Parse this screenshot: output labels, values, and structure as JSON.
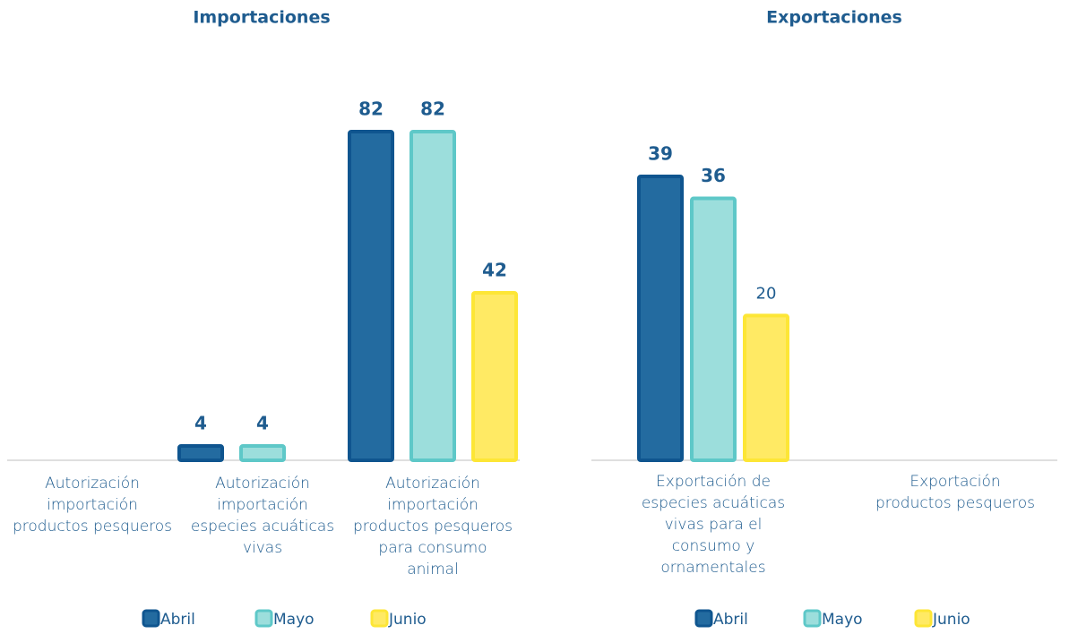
{
  "chart_data": [
    {
      "type": "bar",
      "title": "Importaciones",
      "categories": [
        "Autorización importación productos pesqueros",
        "Autorización importación especies acuáticas vivas",
        "Autorización importación productos pesqueros para consumo animal"
      ],
      "series": [
        {
          "name": "Abril",
          "color": "#236ba0",
          "values": [
            null,
            4,
            82
          ]
        },
        {
          "name": "Mayo",
          "color": "#9cdedc",
          "values": [
            null,
            4,
            82
          ]
        },
        {
          "name": "Junio",
          "color": "#ffea64",
          "values": [
            null,
            null,
            42
          ]
        }
      ],
      "ylim": [
        0,
        100
      ]
    },
    {
      "type": "bar",
      "title": "Exportaciones",
      "categories": [
        "Exportación de especies acuáticas vivas para el consumo y ornamentales",
        "Exportación productos pesqueros"
      ],
      "series": [
        {
          "name": "Abril",
          "color": "#236ba0",
          "values": [
            39,
            null
          ]
        },
        {
          "name": "Mayo",
          "color": "#9cdedc",
          "values": [
            36,
            null
          ]
        },
        {
          "name": "Junio",
          "color": "#ffea64",
          "values": [
            20,
            null
          ]
        }
      ],
      "ylim": [
        0,
        50
      ]
    }
  ]
}
